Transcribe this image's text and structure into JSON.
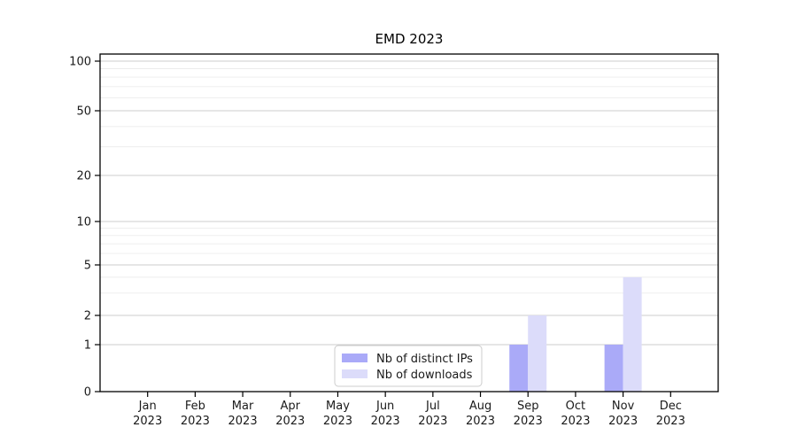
{
  "figure": {
    "background": "#ffffff"
  },
  "chart_data": {
    "type": "bar",
    "title": "EMD 2023",
    "categories": [
      "Jan",
      "Feb",
      "Mar",
      "Apr",
      "May",
      "Jun",
      "Jul",
      "Aug",
      "Sep",
      "Oct",
      "Nov",
      "Dec"
    ],
    "category_sublabel": "2023",
    "series": [
      {
        "name": "Nb of distinct IPs",
        "color": "#aaaaf8",
        "values": [
          0,
          0,
          0,
          0,
          0,
          0,
          0,
          0,
          1,
          0,
          1,
          0
        ]
      },
      {
        "name": "Nb of downloads",
        "color": "#dcdcfa",
        "values": [
          0,
          0,
          0,
          0,
          0,
          0,
          0,
          0,
          2,
          0,
          4,
          0
        ]
      }
    ],
    "xlabel": "",
    "ylabel": "",
    "yticks": [
      0,
      1,
      2,
      5,
      10,
      20,
      50,
      100
    ],
    "minor_gridlines": [
      3,
      4,
      6,
      7,
      8,
      9,
      30,
      40,
      60,
      70,
      80,
      90
    ],
    "ylim": [
      0,
      100
    ],
    "yscale": "log (linear segment between 0 and 1)",
    "grid": "horizontal major + minor",
    "legend": {
      "position": "bottom-center-inside",
      "entries": [
        "Nb of distinct IPs",
        "Nb of downloads"
      ],
      "border_color": "#cccccc",
      "background": "#ffffff"
    },
    "colors": {
      "axis": "#000000",
      "major_grid": "#cccccc",
      "minor_grid": "#ececec",
      "text": "#1a1a1a"
    }
  }
}
